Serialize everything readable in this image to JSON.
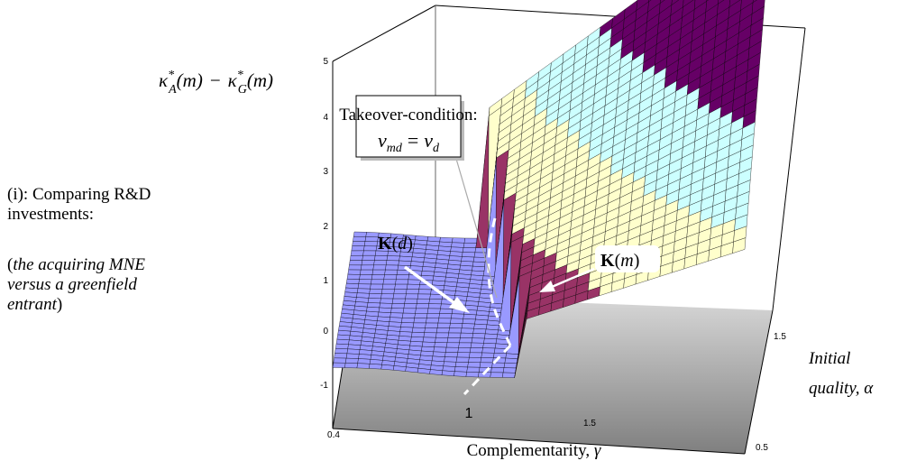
{
  "panel": {
    "label": "(i): Comparing R&D investments:",
    "note_open": "(",
    "note_italic": "the acquiring MNE versus a greenfield entrant",
    "note_close": ")"
  },
  "annotations": {
    "takeover_title": "Takeover-condition:",
    "takeover_lhs_sym": "v",
    "takeover_lhs_sub": "md",
    "takeover_eq": "=",
    "takeover_rhs_sym": "v",
    "takeover_rhs_sub": "d",
    "k_d_bold": "K",
    "k_d_arg": "d",
    "k_m_bold": "K",
    "k_m_arg": "m"
  },
  "chart_data": {
    "type": "surface",
    "zlabel_parts": {
      "k1": "κ",
      "sup1": "*",
      "sub1": "A",
      "minus": "−",
      "k2": "κ",
      "sup2": "*",
      "sub2": "G",
      "arg": "(m)"
    },
    "xlabel_text": "Complementarity, ",
    "xlabel_sym": "γ",
    "ylabel_line1": "Initial",
    "ylabel_line2": "quality, ",
    "ylabel_sym": "α",
    "x_ticks": [
      "0.4",
      "1",
      "1.5"
    ],
    "y_ticks": [
      "0.5",
      "1.5"
    ],
    "z_ticks": [
      "-1",
      "0",
      "1",
      "2",
      "3",
      "4",
      "5"
    ],
    "xlim": [
      0.4,
      2.2
    ],
    "ylim": [
      0.5,
      2.0
    ],
    "zlim": [
      -1,
      5
    ],
    "bands": [
      {
        "range": [
          -0.5,
          0.5
        ],
        "color": "#9999ff"
      },
      {
        "range": [
          0.5,
          1.5
        ],
        "color": "#993366"
      },
      {
        "range": [
          1.5,
          2.5
        ],
        "color": "#ffffcc"
      },
      {
        "range": [
          2.5,
          3.5
        ],
        "color": "#ccffff"
      },
      {
        "range": [
          3.5,
          5.0
        ],
        "color": "#660066"
      }
    ],
    "colors": {
      "floor_light": "#d9d9d9",
      "floor_dark": "#7f7f7f",
      "takeover_line": "#ffffff",
      "arrow": "#ffffff"
    }
  }
}
